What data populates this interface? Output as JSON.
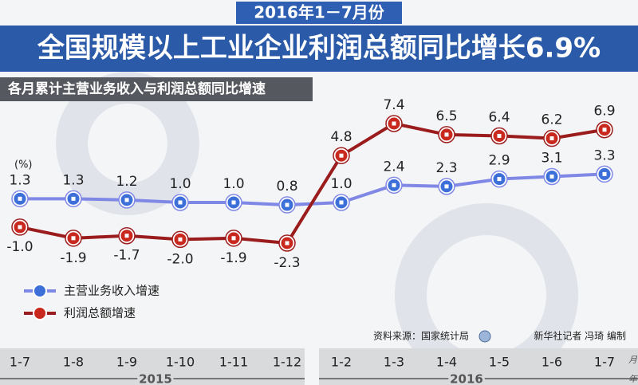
{
  "chart_data": {
    "type": "line",
    "header": "2016年1－7月份",
    "title": "全国规模以上工业企业利润总额同比增长6.9%",
    "subtitle": "各月累计主营业务收入与利润总额同比增速",
    "unit": "(%)",
    "categories": [
      "1-7",
      "1-8",
      "1-9",
      "1-10",
      "1-11",
      "1-12",
      "1-2",
      "1-3",
      "1-4",
      "1-5",
      "1-6",
      "1-7"
    ],
    "x_groups": [
      "2015",
      "2016"
    ],
    "x_unit_month": "月",
    "x_unit_year": "年",
    "series": [
      {
        "name": "主营业务收入增速",
        "color": "#8088e6",
        "values": [
          1.3,
          1.3,
          1.2,
          1.0,
          1.0,
          0.8,
          1.0,
          2.4,
          2.3,
          2.9,
          3.1,
          3.3
        ],
        "value_labels": [
          "1.3",
          "1.3",
          "1.2",
          "1.0",
          "1.0",
          "0.8",
          "1.0",
          "2.4",
          "2.3",
          "2.9",
          "3.1",
          "3.3"
        ]
      },
      {
        "name": "利润总额增速",
        "color": "#9b1c1c",
        "values": [
          -1.0,
          -1.9,
          -1.7,
          -2.0,
          -1.9,
          -2.3,
          4.8,
          7.4,
          6.5,
          6.4,
          6.2,
          6.9
        ],
        "value_labels": [
          "-1.0",
          "-1.9",
          "-1.7",
          "-2.0",
          "-1.9",
          "-2.3",
          "4.8",
          "7.4",
          "6.5",
          "6.4",
          "6.2",
          "6.9"
        ]
      }
    ],
    "source": "资料来源：国家统计局",
    "credit": "新华社记者 冯琦 编制"
  }
}
